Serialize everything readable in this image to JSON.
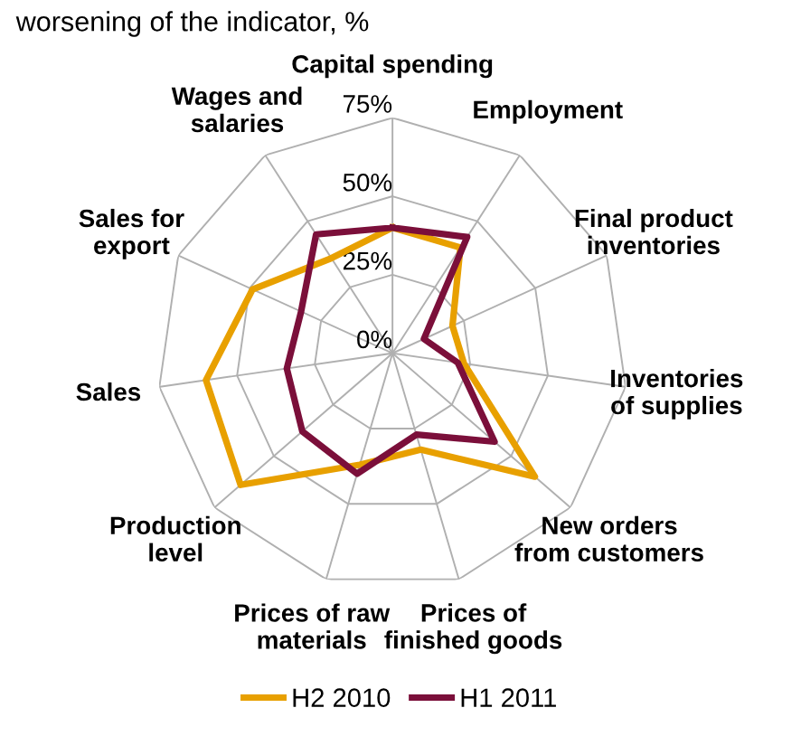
{
  "chart_data": {
    "type": "radar",
    "title": "worsening of the indicator, %",
    "categories": [
      "Capital spending",
      "Employment",
      "Final product\ninventories",
      "Inventories\nof supplies",
      "New orders\nfrom customers",
      "Prices of\nfinished goods",
      "Prices of raw\nmaterials",
      "Production\nlevel",
      "Sales",
      "Sales for\nexport",
      "Wages and\nsalaries"
    ],
    "series": [
      {
        "name": "H2 2010",
        "color": "#e8a000",
        "values": [
          40,
          40,
          21,
          23,
          60,
          32,
          37,
          64,
          60,
          49,
          36
        ]
      },
      {
        "name": "H1 2011",
        "color": "#7b0f3a",
        "values": [
          40,
          44,
          11,
          21,
          43,
          27,
          40,
          38,
          34,
          32,
          45
        ]
      }
    ],
    "ylim": [
      0,
      75
    ],
    "yticks": [
      {
        "value": 0,
        "label": "0%"
      },
      {
        "value": 25,
        "label": "25%"
      },
      {
        "value": 50,
        "label": "50%"
      },
      {
        "value": 75,
        "label": "75%"
      }
    ],
    "grid": true,
    "legend": "bottom",
    "marker": "none",
    "line_style": "solid"
  }
}
